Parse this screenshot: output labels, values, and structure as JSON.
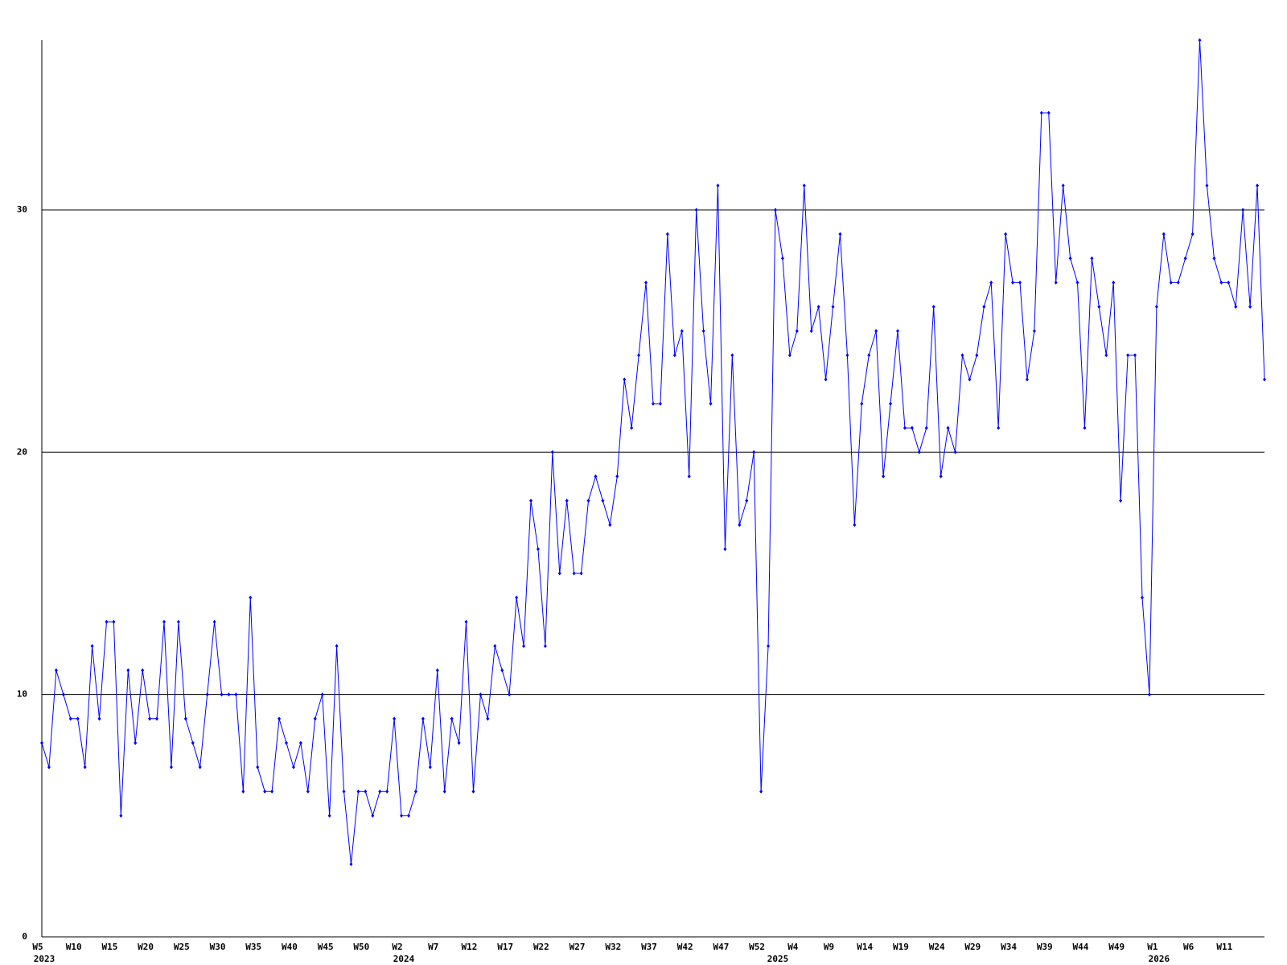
{
  "chart_data": {
    "type": "line",
    "color": "#0000ff",
    "grid": true,
    "ylim": [
      0,
      37
    ],
    "yticks": [
      0,
      10,
      20,
      30
    ],
    "categories": [
      "W5",
      null,
      null,
      null,
      null,
      "W10",
      null,
      null,
      null,
      null,
      "W15",
      null,
      null,
      null,
      null,
      "W20",
      null,
      null,
      null,
      null,
      "W25",
      null,
      null,
      null,
      null,
      "W30",
      null,
      null,
      null,
      null,
      "W35",
      null,
      null,
      null,
      null,
      "W40",
      null,
      null,
      null,
      null,
      "W45",
      null,
      null,
      null,
      null,
      "W50",
      null,
      null,
      null,
      null,
      "W2",
      null,
      null,
      null,
      null,
      "W7",
      null,
      null,
      null,
      null,
      "W12",
      null,
      null,
      null,
      null,
      "W17",
      null,
      null,
      null,
      null,
      "W22",
      null,
      null,
      null,
      null,
      "W27",
      null,
      null,
      null,
      null,
      "W32",
      null,
      null,
      null,
      null,
      "W37",
      null,
      null,
      null,
      null,
      "W42",
      null,
      null,
      null,
      null,
      "W47",
      null,
      null,
      null,
      null,
      "W52",
      null,
      null,
      null,
      null,
      "W4",
      null,
      null,
      null,
      null,
      "W9",
      null,
      null,
      null,
      null,
      "W14",
      null,
      null,
      null,
      null,
      "W19",
      null,
      null,
      null,
      null,
      "W24",
      null,
      null,
      null,
      null,
      "W29",
      null,
      null,
      null,
      null,
      "W34",
      null,
      null,
      null,
      null,
      "W39",
      null,
      null,
      null,
      null,
      "W44",
      null,
      null,
      null,
      null,
      "W49",
      null,
      null,
      null,
      null,
      "W1",
      null,
      null,
      null,
      null,
      "W6",
      null,
      null,
      null,
      null,
      "W11",
      null,
      null,
      null,
      null,
      null
    ],
    "x_group_labels": [
      "2023",
      null,
      null,
      null,
      null,
      null,
      null,
      null,
      null,
      null,
      null,
      null,
      null,
      null,
      null,
      null,
      null,
      null,
      null,
      null,
      null,
      null,
      null,
      null,
      null,
      null,
      null,
      null,
      null,
      null,
      null,
      null,
      null,
      null,
      null,
      null,
      null,
      null,
      null,
      null,
      null,
      null,
      null,
      null,
      null,
      null,
      null,
      null,
      null,
      null,
      "2024",
      null,
      null,
      null,
      null,
      null,
      null,
      null,
      null,
      null,
      null,
      null,
      null,
      null,
      null,
      null,
      null,
      null,
      null,
      null,
      null,
      null,
      null,
      null,
      null,
      null,
      null,
      null,
      null,
      null,
      null,
      null,
      null,
      null,
      null,
      null,
      null,
      null,
      null,
      null,
      null,
      null,
      null,
      null,
      null,
      null,
      null,
      null,
      null,
      null,
      null,
      null,
      "2025",
      null,
      null,
      null,
      null,
      null,
      null,
      null,
      null,
      null,
      null,
      null,
      null,
      null,
      null,
      null,
      null,
      null,
      null,
      null,
      null,
      null,
      null,
      null,
      null,
      null,
      null,
      null,
      null,
      null,
      null,
      null,
      null,
      null,
      null,
      null,
      null,
      null,
      null,
      null,
      null,
      null,
      null,
      null,
      null,
      null,
      null,
      null,
      null,
      null,
      null,
      null,
      null,
      "2026",
      null,
      null,
      null,
      null,
      null,
      null,
      null,
      null,
      null,
      null,
      null,
      null,
      null,
      null,
      null
    ],
    "values": [
      8,
      7,
      11,
      10,
      9,
      9,
      7,
      12,
      9,
      13,
      13,
      5,
      11,
      8,
      11,
      9,
      9,
      13,
      7,
      13,
      9,
      8,
      7,
      10,
      13,
      10,
      10,
      10,
      6,
      14,
      7,
      6,
      6,
      9,
      8,
      7,
      8,
      6,
      9,
      10,
      5,
      12,
      6,
      3,
      6,
      6,
      5,
      6,
      6,
      9,
      5,
      5,
      6,
      9,
      7,
      11,
      6,
      9,
      8,
      13,
      6,
      10,
      9,
      12,
      11,
      10,
      14,
      12,
      18,
      16,
      12,
      20,
      15,
      18,
      15,
      15,
      18,
      19,
      18,
      17,
      19,
      23,
      21,
      24,
      27,
      22,
      22,
      29,
      24,
      25,
      19,
      30,
      25,
      22,
      31,
      16,
      24,
      17,
      18,
      20,
      6,
      12,
      30,
      28,
      24,
      25,
      31,
      25,
      26,
      23,
      26,
      29,
      24,
      17,
      22,
      24,
      25,
      19,
      22,
      25,
      21,
      21,
      20,
      21,
      26,
      19,
      21,
      20,
      24,
      23,
      24,
      26,
      27,
      21,
      29,
      27,
      27,
      23,
      25,
      34,
      34,
      27,
      31,
      28,
      27,
      21,
      28,
      26,
      24,
      27,
      18,
      24,
      24,
      14,
      10,
      26,
      29,
      27,
      27,
      28,
      29,
      37,
      31,
      28,
      27,
      27,
      26,
      30,
      26,
      31,
      23
    ]
  }
}
